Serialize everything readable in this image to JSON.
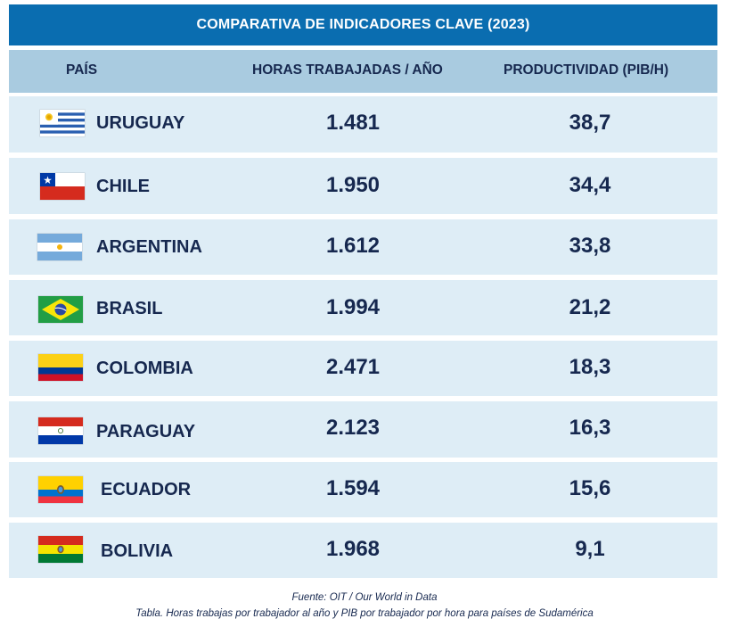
{
  "chart_data": {
    "type": "table",
    "title": "COMPARATIVA DE INDICADORES CLAVE (2023)",
    "columns": [
      "PAÍS",
      "HORAS TRABAJADAS / AÑO",
      "PRODUCTIVIDAD (PIB/H)"
    ],
    "rows": [
      {
        "country": "URUGUAY",
        "flag": "uruguay-flag-icon",
        "hours": "1.481",
        "productivity": "38,7"
      },
      {
        "country": "CHILE",
        "flag": "chile-flag-icon",
        "hours": "1.950",
        "productivity": "34,4"
      },
      {
        "country": "ARGENTINA",
        "flag": "argentina-flag-icon",
        "hours": "1.612",
        "productivity": "33,8"
      },
      {
        "country": "BRASIL",
        "flag": "brazil-flag-icon",
        "hours": "1.994",
        "productivity": "21,2"
      },
      {
        "country": "COLOMBIA",
        "flag": "colombia-flag-icon",
        "hours": "2.471",
        "productivity": "18,3"
      },
      {
        "country": "PARAGUAY",
        "flag": "paraguay-flag-icon",
        "hours": "2.123",
        "productivity": "16,3"
      },
      {
        "country": "ECUADOR",
        "flag": "ecuador-flag-icon",
        "hours": "1.594",
        "productivity": "15,6"
      },
      {
        "country": "BOLIVIA",
        "flag": "bolivia-flag-icon",
        "hours": "1.968",
        "productivity": "9,1"
      }
    ],
    "source": "Fuente: OIT / Our World in Data",
    "caption": "Tabla. Horas trabajas por trabajador al año y PIB por trabajador por hora para países de Sudamérica"
  },
  "colors": {
    "title_bg": "#0a6db0",
    "header_bg": "#a9cbe0",
    "row_bg": "#deedf6",
    "text": "#16284f"
  }
}
